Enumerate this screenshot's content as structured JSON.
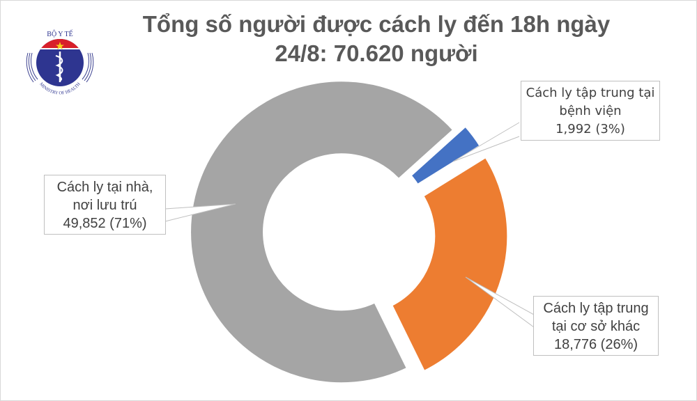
{
  "title": {
    "line1": "Tổng số người được cách ly đến 18h ngày",
    "line2": "24/8: 70.620 người"
  },
  "logo": {
    "top_text": "BỘ Y TẾ",
    "bottom_text": "MINISTRY OF HEALTH",
    "icon": "ministry-of-health-emblem"
  },
  "colors": {
    "gray": "#a5a5a5",
    "orange": "#ed7d31",
    "blue": "#4472c4",
    "title": "#595959",
    "label_text": "#404040"
  },
  "callouts": {
    "home": {
      "line1": "Cách ly tại nhà,",
      "line2": "nơi lưu trú",
      "line3": "49,852 (71%)"
    },
    "hospital": {
      "line1": "Cách ly tập trung tại",
      "line2": "bệnh viện",
      "line3": "1,992 (3%)"
    },
    "other": {
      "line1": "Cách ly tập trung",
      "line2": "tại cơ sở khác",
      "line3": "18,776 (26%)"
    }
  },
  "chart_data": {
    "type": "pie",
    "subtype": "donut-exploded",
    "title": "Tổng số người được cách ly đến 18h ngày 24/8: 70.620 người",
    "total": 70620,
    "categories": [
      "Cách ly tập trung tại bệnh viện",
      "Cách ly tập trung tại cơ sở khác",
      "Cách ly tại nhà, nơi lưu trú"
    ],
    "values": [
      1992,
      18776,
      49852
    ],
    "percentages": [
      3,
      26,
      71
    ],
    "colors": [
      "#4472c4",
      "#ed7d31",
      "#a5a5a5"
    ],
    "data_labels": [
      "1,992 (3%)",
      "18,776 (26%)",
      "49,852 (71%)"
    ],
    "legend": "none (callout labels)"
  }
}
